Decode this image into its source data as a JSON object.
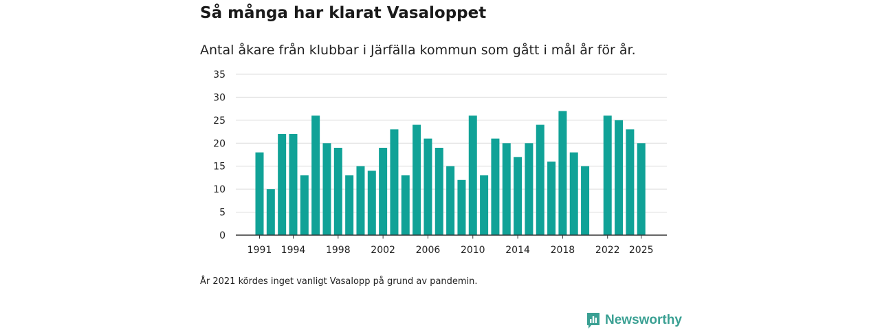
{
  "title": "Så många har klarat Vasaloppet",
  "subtitle": "Antal åkare från klubbar i Järfälla kommun som gått i mål år för år.",
  "footnote": "År 2021 kördes inget vanligt Vasalopp på grund av pandemin.",
  "brand": {
    "name": "Newsworthy",
    "color": "#3aa093",
    "icon": "newsworthy-logo-icon"
  },
  "colors": {
    "bar": "#10a297",
    "grid": "#dcdcdc",
    "axis": "#333333"
  },
  "chart_data": {
    "type": "bar",
    "title": "Så många har klarat Vasaloppet",
    "xlabel": "",
    "ylabel": "",
    "ylim": [
      0,
      35
    ],
    "yticks": [
      0,
      5,
      10,
      15,
      20,
      25,
      30,
      35
    ],
    "xticks": [
      1991,
      1994,
      1998,
      2002,
      2006,
      2010,
      2014,
      2018,
      2022,
      2025
    ],
    "categories": [
      1991,
      1992,
      1993,
      1994,
      1995,
      1996,
      1997,
      1998,
      1999,
      2000,
      2001,
      2002,
      2003,
      2004,
      2005,
      2006,
      2007,
      2008,
      2009,
      2010,
      2011,
      2012,
      2013,
      2014,
      2015,
      2016,
      2017,
      2018,
      2019,
      2020,
      2021,
      2022,
      2023,
      2024,
      2025
    ],
    "values": [
      18,
      10,
      22,
      22,
      13,
      26,
      20,
      19,
      13,
      15,
      14,
      19,
      23,
      13,
      24,
      21,
      19,
      15,
      12,
      26,
      13,
      21,
      20,
      17,
      20,
      24,
      16,
      27,
      18,
      15,
      null,
      26,
      25,
      23,
      20
    ],
    "grid": true
  }
}
